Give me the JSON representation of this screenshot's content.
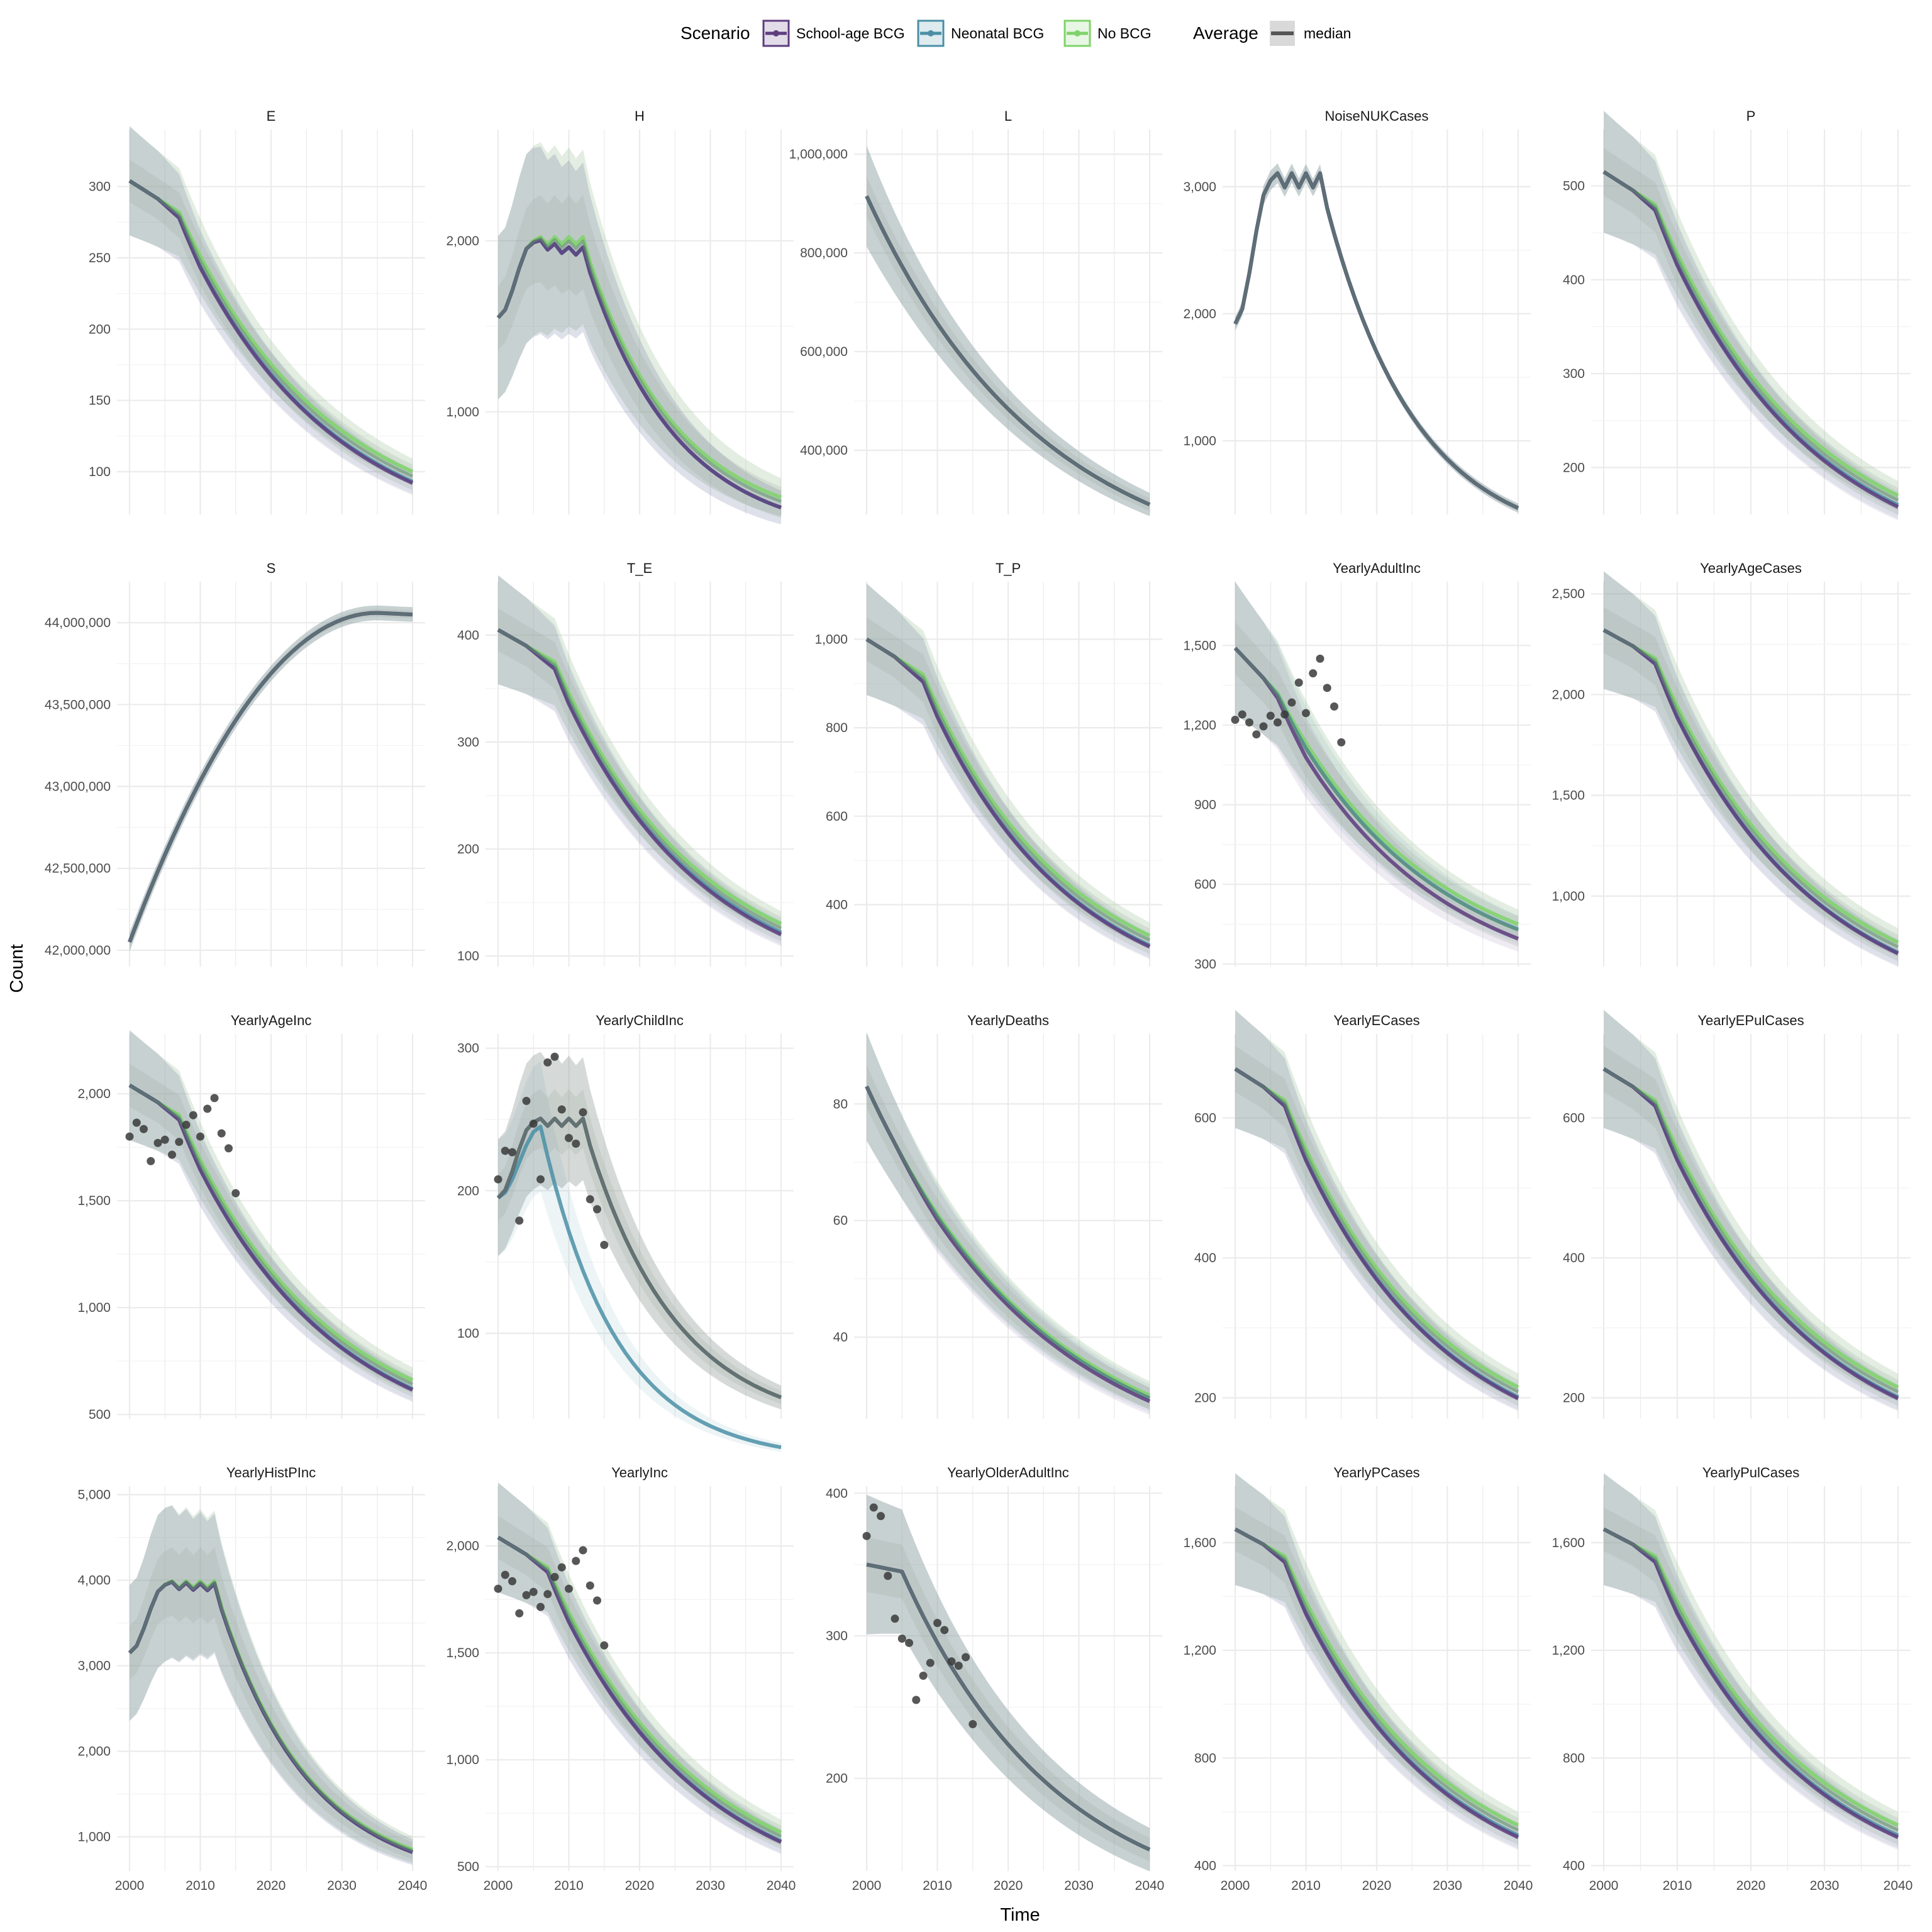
{
  "chart_data": {
    "type": "line",
    "xlabel": "Time",
    "ylabel": "Count",
    "xlim": [
      2000,
      2040
    ],
    "x_ticks": [
      2000,
      2010,
      2020,
      2030,
      2040
    ],
    "grid": true,
    "legend": {
      "placement": "top",
      "scenario_title": "Scenario",
      "scenarios": [
        {
          "name": "School-age BCG",
          "color": "#5e3c7e"
        },
        {
          "name": "Neonatal BCG",
          "color": "#4a8fa6"
        },
        {
          "name": "No BCG",
          "color": "#7fd36a"
        }
      ],
      "average_title": "Average",
      "average_label": "median"
    },
    "panels": [
      {
        "name": "E",
        "ylim": [
          70,
          340
        ],
        "yticks": [
          100,
          150,
          200,
          250,
          300
        ],
        "yticklabels": [
          "100",
          "150",
          "200",
          "250",
          "300"
        ],
        "shape": {
          "type": "decay",
          "start": 304,
          "end": 100,
          "plateau_end": 2007,
          "plateau_level": 282
        },
        "offsets": {
          "school": -8,
          "neo": -7,
          "nobcg": 0
        },
        "band": 0.09,
        "points": []
      },
      {
        "name": "H",
        "ylim": [
          400,
          2650
        ],
        "yticks": [
          1000,
          2000
        ],
        "yticklabels": [
          "1,000",
          "2,000"
        ],
        "shape": {
          "type": "hump",
          "start": 1550,
          "peak": 2000,
          "peak_start": 2005,
          "peak_end": 2012,
          "end": 500
        },
        "offsets": {
          "school": -60,
          "neo": -60,
          "nobcg": 0
        },
        "band": 0.22,
        "points": []
      },
      {
        "name": "L",
        "ylim": [
          270000,
          1050000
        ],
        "yticks": [
          400000,
          600000,
          800000,
          1000000
        ],
        "yticklabels": [
          "400,000",
          "600,000",
          "800,000",
          "1,000,000"
        ],
        "shape": {
          "type": "decay",
          "start": 915000,
          "end": 290000,
          "plateau_end": 2000,
          "plateau_level": 915000
        },
        "offsets": {
          "school": 0,
          "neo": 0,
          "nobcg": 0
        },
        "band": 0.08,
        "points": []
      },
      {
        "name": "NoiseNUKCases",
        "ylim": [
          420,
          3450
        ],
        "yticks": [
          1000,
          2000,
          3000
        ],
        "yticklabels": [
          "1,000",
          "2,000",
          "3,000"
        ],
        "shape": {
          "type": "hump",
          "start": 1920,
          "peak": 3050,
          "peak_start": 2005,
          "peak_end": 2012,
          "end": 470
        },
        "offsets": {
          "school": 0,
          "neo": 0,
          "nobcg": 0
        },
        "band": 0.02,
        "points": []
      },
      {
        "name": "P",
        "ylim": [
          150,
          560
        ],
        "yticks": [
          200,
          300,
          400,
          500
        ],
        "yticklabels": [
          "200",
          "300",
          "400",
          "500"
        ],
        "shape": {
          "type": "decay",
          "start": 515,
          "end": 170,
          "plateau_end": 2007,
          "plateau_level": 480
        },
        "offsets": {
          "school": -12,
          "neo": -10,
          "nobcg": 0
        },
        "band": 0.09,
        "points": []
      },
      {
        "name": "S",
        "ylim": [
          41900000,
          44250000
        ],
        "yticks": [
          42000000,
          42500000,
          43000000,
          43500000,
          44000000
        ],
        "yticklabels": [
          "42,000,000",
          "42,500,000",
          "43,000,000",
          "43,500,000",
          "44,000,000"
        ],
        "shape": {
          "type": "rise",
          "start": 42050000,
          "max": 44060000,
          "max_year": 2035,
          "end": 44050000
        },
        "offsets": {
          "school": 0,
          "neo": 0,
          "nobcg": 0
        },
        "band": 0.001,
        "points": []
      },
      {
        "name": "T_E",
        "ylim": [
          90,
          450
        ],
        "yticks": [
          100,
          200,
          300,
          400
        ],
        "yticklabels": [
          "100",
          "200",
          "300",
          "400"
        ],
        "shape": {
          "type": "decay",
          "start": 405,
          "end": 130,
          "plateau_end": 2008,
          "plateau_level": 375
        },
        "offsets": {
          "school": -10,
          "neo": -8,
          "nobcg": 0
        },
        "band": 0.09,
        "points": []
      },
      {
        "name": "T_P",
        "ylim": [
          260,
          1130
        ],
        "yticks": [
          400,
          600,
          800,
          1000
        ],
        "yticklabels": [
          "400",
          "600",
          "800",
          "1,000"
        ],
        "shape": {
          "type": "decay",
          "start": 1000,
          "end": 330,
          "plateau_end": 2008,
          "plateau_level": 920
        },
        "offsets": {
          "school": -25,
          "neo": -22,
          "nobcg": 0
        },
        "band": 0.09,
        "points": []
      },
      {
        "name": "YearlyAdultInc",
        "ylim": [
          290,
          1740
        ],
        "yticks": [
          300,
          600,
          900,
          1200,
          1500
        ],
        "yticklabels": [
          "300",
          "600",
          "900",
          "1,200",
          "1,500"
        ],
        "shape": {
          "type": "decay",
          "start": 1490,
          "end": 450,
          "plateau_end": 2006,
          "plateau_level": 1320
        },
        "offsets": {
          "school": -55,
          "neo": -20,
          "nobcg": 0
        },
        "band": 0.12,
        "points": [
          [
            2000,
            1220
          ],
          [
            2001,
            1240
          ],
          [
            2002,
            1210
          ],
          [
            2003,
            1165
          ],
          [
            2004,
            1195
          ],
          [
            2005,
            1235
          ],
          [
            2006,
            1210
          ],
          [
            2007,
            1240
          ],
          [
            2008,
            1285
          ],
          [
            2009,
            1360
          ],
          [
            2010,
            1245
          ],
          [
            2011,
            1395
          ],
          [
            2012,
            1450
          ],
          [
            2013,
            1340
          ],
          [
            2014,
            1270
          ],
          [
            2015,
            1135
          ]
        ]
      },
      {
        "name": "YearlyAgeCases",
        "ylim": [
          650,
          2560
        ],
        "yticks": [
          1000,
          1500,
          2000,
          2500
        ],
        "yticklabels": [
          "1,000",
          "1,500",
          "2,000",
          "2,500"
        ],
        "shape": {
          "type": "decay",
          "start": 2320,
          "end": 770,
          "plateau_end": 2007,
          "plateau_level": 2180
        },
        "offsets": {
          "school": -55,
          "neo": -50,
          "nobcg": 0
        },
        "band": 0.09,
        "points": []
      },
      {
        "name": "YearlyAgeInc",
        "ylim": [
          480,
          2280
        ],
        "yticks": [
          500,
          1000,
          1500,
          2000
        ],
        "yticklabels": [
          "500",
          "1,000",
          "1,500",
          "2,000"
        ],
        "shape": {
          "type": "decay",
          "start": 2040,
          "end": 660,
          "plateau_end": 2007,
          "plateau_level": 1900
        },
        "offsets": {
          "school": -45,
          "neo": -40,
          "nobcg": 0
        },
        "band": 0.09,
        "points": [
          [
            2000,
            1800
          ],
          [
            2001,
            1865
          ],
          [
            2002,
            1835
          ],
          [
            2003,
            1685
          ],
          [
            2004,
            1770
          ],
          [
            2005,
            1785
          ],
          [
            2006,
            1715
          ],
          [
            2007,
            1775
          ],
          [
            2008,
            1855
          ],
          [
            2009,
            1900
          ],
          [
            2010,
            1800
          ],
          [
            2011,
            1930
          ],
          [
            2012,
            1980
          ],
          [
            2013,
            1815
          ],
          [
            2014,
            1745
          ],
          [
            2015,
            1535
          ]
        ]
      },
      {
        "name": "YearlyChildInc",
        "ylim": [
          40,
          310
        ],
        "yticks": [
          100,
          200,
          300
        ],
        "yticklabels": [
          "100",
          "200",
          "300"
        ],
        "shape": {
          "type": "hump",
          "start": 195,
          "peak": 248,
          "peak_start": 2005,
          "peak_end": 2012,
          "end": 55
        },
        "offsets": {
          "school": 0,
          "neo": 0,
          "nobcg": 0
        },
        "band": 0.15,
        "neonatal_override": {
          "start": 195,
          "peak": 245,
          "peak_year": 2006,
          "end": 20
        },
        "points": [
          [
            2000,
            208
          ],
          [
            2001,
            228
          ],
          [
            2002,
            227
          ],
          [
            2003,
            179
          ],
          [
            2004,
            263
          ],
          [
            2005,
            247
          ],
          [
            2006,
            208
          ],
          [
            2007,
            290
          ],
          [
            2008,
            294
          ],
          [
            2009,
            257
          ],
          [
            2010,
            237
          ],
          [
            2011,
            233
          ],
          [
            2012,
            255
          ],
          [
            2013,
            194
          ],
          [
            2014,
            187
          ],
          [
            2015,
            162
          ]
        ]
      },
      {
        "name": "YearlyDeaths",
        "ylim": [
          26,
          92
        ],
        "yticks": [
          40,
          60,
          80
        ],
        "yticklabels": [
          "40",
          "60",
          "80"
        ],
        "shape": {
          "type": "decay",
          "start": 83,
          "end": 30,
          "plateau_end": 2000,
          "plateau_level": 83
        },
        "offsets": {
          "school": -1,
          "neo": -0.5,
          "nobcg": 0
        },
        "band": 0.08,
        "points": []
      },
      {
        "name": "YearlyECases",
        "ylim": [
          170,
          720
        ],
        "yticks": [
          200,
          400,
          600
        ],
        "yticklabels": [
          "200",
          "400",
          "600"
        ],
        "shape": {
          "type": "decay",
          "start": 670,
          "end": 215,
          "plateau_end": 2007,
          "plateau_level": 625
        },
        "offsets": {
          "school": -16,
          "neo": -14,
          "nobcg": 0
        },
        "band": 0.09,
        "points": []
      },
      {
        "name": "YearlyEPulCases",
        "ylim": [
          170,
          720
        ],
        "yticks": [
          200,
          400,
          600
        ],
        "yticklabels": [
          "200",
          "400",
          "600"
        ],
        "shape": {
          "type": "decay",
          "start": 670,
          "end": 215,
          "plateau_end": 2007,
          "plateau_level": 625
        },
        "offsets": {
          "school": -16,
          "neo": -14,
          "nobcg": 0
        },
        "band": 0.09,
        "points": []
      },
      {
        "name": "YearlyHistPInc",
        "ylim": [
          600,
          5100
        ],
        "yticks": [
          1000,
          2000,
          3000,
          4000,
          5000
        ],
        "yticklabels": [
          "1,000",
          "2,000",
          "3,000",
          "4,000",
          "5,000"
        ],
        "shape": {
          "type": "hump",
          "start": 3150,
          "peak": 3950,
          "peak_start": 2005,
          "peak_end": 2012,
          "end": 850
        },
        "offsets": {
          "school": -30,
          "neo": -30,
          "nobcg": 0
        },
        "band": 0.18,
        "points": []
      },
      {
        "name": "YearlyInc",
        "ylim": [
          480,
          2280
        ],
        "yticks": [
          500,
          1000,
          1500,
          2000
        ],
        "yticklabels": [
          "500",
          "1,000",
          "1,500",
          "2,000"
        ],
        "shape": {
          "type": "decay",
          "start": 2040,
          "end": 660,
          "plateau_end": 2007,
          "plateau_level": 1900
        },
        "offsets": {
          "school": -45,
          "neo": -40,
          "nobcg": 0
        },
        "band": 0.09,
        "points": [
          [
            2000,
            1800
          ],
          [
            2001,
            1865
          ],
          [
            2002,
            1835
          ],
          [
            2003,
            1685
          ],
          [
            2004,
            1770
          ],
          [
            2005,
            1785
          ],
          [
            2006,
            1715
          ],
          [
            2007,
            1775
          ],
          [
            2008,
            1855
          ],
          [
            2009,
            1900
          ],
          [
            2010,
            1800
          ],
          [
            2011,
            1930
          ],
          [
            2012,
            1980
          ],
          [
            2013,
            1815
          ],
          [
            2014,
            1745
          ],
          [
            2015,
            1535
          ]
        ]
      },
      {
        "name": "YearlyOlderAdultInc",
        "ylim": [
          135,
          405
        ],
        "yticks": [
          200,
          300,
          400
        ],
        "yticklabels": [
          "200",
          "300",
          "400"
        ],
        "shape": {
          "type": "decay",
          "start": 350,
          "end": 150,
          "plateau_end": 2005,
          "plateau_level": 345
        },
        "offsets": {
          "school": 0,
          "neo": 0,
          "nobcg": 0
        },
        "band": 0.1,
        "points": [
          [
            2000,
            370
          ],
          [
            2001,
            390
          ],
          [
            2002,
            384
          ],
          [
            2003,
            342
          ],
          [
            2004,
            312
          ],
          [
            2005,
            298
          ],
          [
            2006,
            295
          ],
          [
            2007,
            255
          ],
          [
            2008,
            272
          ],
          [
            2009,
            281
          ],
          [
            2010,
            309
          ],
          [
            2011,
            304
          ],
          [
            2012,
            282
          ],
          [
            2013,
            279
          ],
          [
            2014,
            285
          ],
          [
            2015,
            238
          ]
        ]
      },
      {
        "name": "YearlyPCases",
        "ylim": [
          380,
          1810
        ],
        "yticks": [
          400,
          800,
          1200,
          1600
        ],
        "yticklabels": [
          "400",
          "800",
          "1,200",
          "1,600"
        ],
        "shape": {
          "type": "decay",
          "start": 1650,
          "end": 550,
          "plateau_end": 2007,
          "plateau_level": 1550
        },
        "offsets": {
          "school": -45,
          "neo": -38,
          "nobcg": 0
        },
        "band": 0.09,
        "points": []
      },
      {
        "name": "YearlyPulCases",
        "ylim": [
          380,
          1810
        ],
        "yticks": [
          400,
          800,
          1200,
          1600
        ],
        "yticklabels": [
          "400",
          "800",
          "1,200",
          "1,600"
        ],
        "shape": {
          "type": "decay",
          "start": 1650,
          "end": 550,
          "plateau_end": 2007,
          "plateau_level": 1550
        },
        "offsets": {
          "school": -45,
          "neo": -38,
          "nobcg": 0
        },
        "band": 0.09,
        "points": []
      }
    ]
  }
}
